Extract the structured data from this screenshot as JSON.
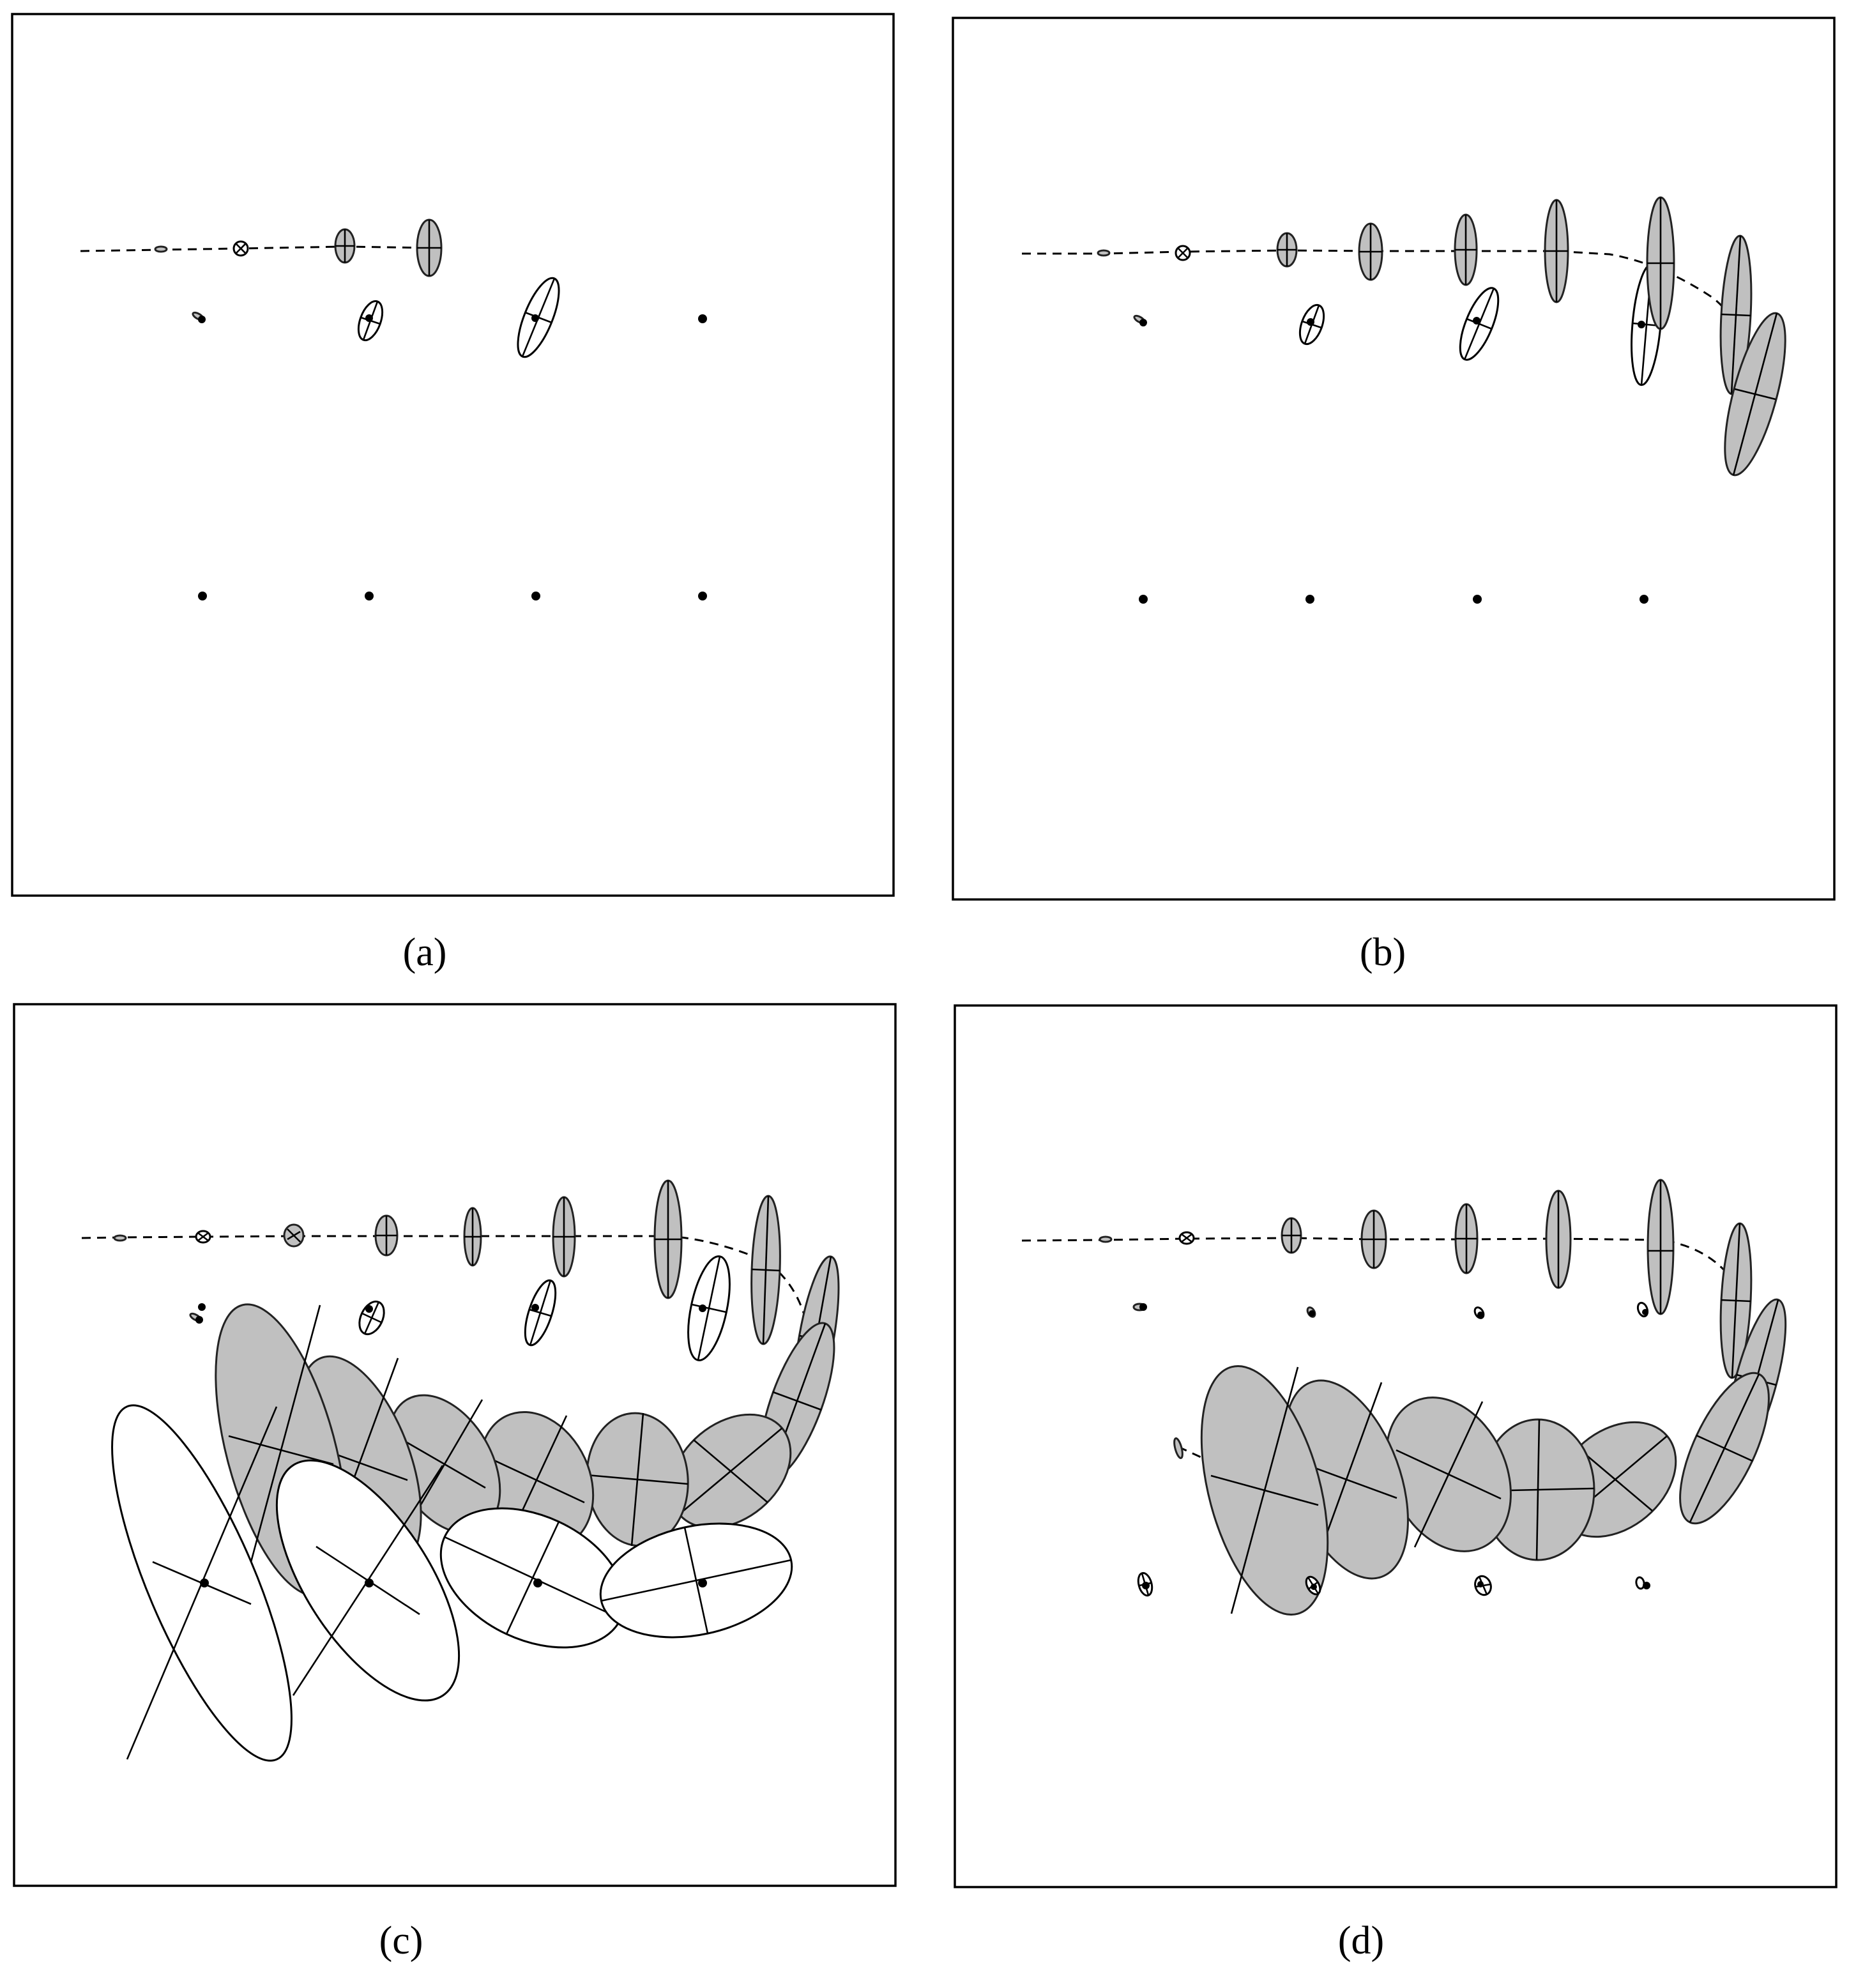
{
  "figure": {
    "panels": [
      {
        "id": "a",
        "caption": "(a)"
      },
      {
        "id": "b",
        "caption": "(b)"
      },
      {
        "id": "c",
        "caption": "(c)"
      },
      {
        "id": "d",
        "caption": "(d)"
      }
    ]
  },
  "colors": {
    "pose_uncertainty_fill": "#c0c0c0",
    "landmark_uncertainty_fill": "#ffffff",
    "stroke": "#000000"
  }
}
